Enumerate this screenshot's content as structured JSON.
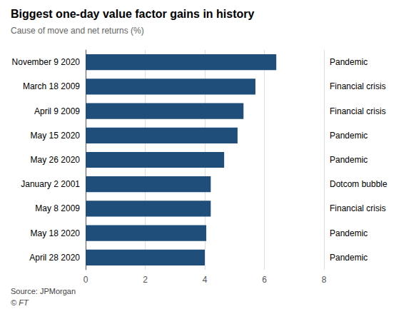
{
  "chart_data": {
    "type": "bar",
    "orientation": "horizontal",
    "title": "Biggest one-day value factor gains in history",
    "subtitle": "Cause of move and net returns (%)",
    "categories": [
      "November 9 2020",
      "March 18 2009",
      "April 9 2009",
      "May 15 2020",
      "May 26 2020",
      "January 2 2001",
      "May 8 2009",
      "May 18 2020",
      "April 28 2020"
    ],
    "values": [
      6.4,
      5.7,
      5.3,
      5.1,
      4.65,
      4.2,
      4.2,
      4.05,
      4.0
    ],
    "annotations": [
      "Pandemic",
      "Financial crisis",
      "Financial crisis",
      "Pandemic",
      "Pandemic",
      "Dotcom bubble",
      "Financial crisis",
      "Pandemic",
      "Pandemic"
    ],
    "color": "#1f4e7a",
    "xlim": [
      0,
      8
    ],
    "xticks": [
      0,
      2,
      4,
      6,
      8
    ],
    "grid": true,
    "source": "Source: JPMorgan",
    "copyright": "© FT"
  }
}
